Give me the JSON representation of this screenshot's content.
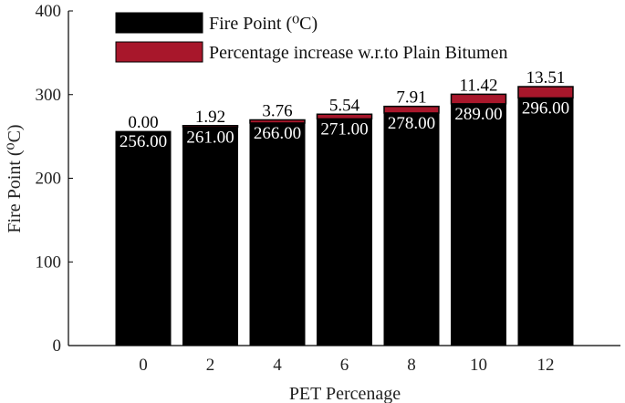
{
  "chart_data": {
    "type": "bar",
    "stacked": true,
    "categories": [
      "0",
      "2",
      "4",
      "6",
      "8",
      "10",
      "12"
    ],
    "series": [
      {
        "name": "Fire Point (⁰C)",
        "values": [
          256.0,
          261.0,
          266.0,
          271.0,
          278.0,
          289.0,
          296.0
        ]
      },
      {
        "name": "Percentage increase w.r.to Plain Bitumen",
        "values": [
          0.0,
          1.92,
          3.76,
          5.54,
          7.91,
          11.42,
          13.51
        ]
      }
    ],
    "bottom_labels": [
      "256.00",
      "261.00",
      "266.00",
      "271.00",
      "278.00",
      "289.00",
      "296.00"
    ],
    "top_labels": [
      "0.00",
      "1.92",
      "3.76",
      "5.54",
      "7.91",
      "11.42",
      "13.51"
    ],
    "xlabel": "PET Percenage",
    "ylabel": "Fire Point (⁰C)",
    "ylim": [
      0,
      400
    ],
    "yticks": [
      0,
      100,
      200,
      300,
      400
    ],
    "grid": false,
    "legend": "top-left",
    "colors": {
      "fire_point": "#000000",
      "percentage": "#a8172b"
    }
  }
}
